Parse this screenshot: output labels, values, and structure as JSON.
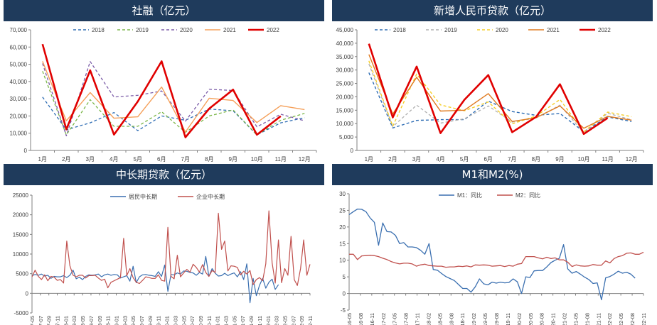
{
  "colors": {
    "header_bg": "#1f3b5c",
    "header_text": "#ffffff",
    "axis": "#808080",
    "tick_text": "#404040"
  },
  "chart_data": [
    {
      "id": "tsf",
      "type": "line",
      "title": "社融（亿元）",
      "categories": [
        "1月",
        "2月",
        "3月",
        "4月",
        "5月",
        "6月",
        "7月",
        "8月",
        "9月",
        "10月",
        "11月",
        "12月"
      ],
      "ylim": [
        0,
        70000
      ],
      "yticks": [
        0,
        10000,
        20000,
        30000,
        40000,
        50000,
        60000,
        70000
      ],
      "ytick_labels": [
        "0",
        "10,000",
        "20,000",
        "30,000",
        "40,000",
        "50,000",
        "60,000",
        "70,000"
      ],
      "legend_position": "top",
      "series": [
        {
          "name": "2018",
          "color": "#2e6db4",
          "dash": "4,3",
          "width": 1.3,
          "values": [
            31000,
            12000,
            16000,
            22000,
            11500,
            20000,
            17500,
            24000,
            23000,
            9000,
            16000,
            19000
          ]
        },
        {
          "name": "2019",
          "color": "#7ab648",
          "dash": "4,3",
          "width": 1.3,
          "values": [
            46000,
            9000,
            29500,
            14000,
            14000,
            22500,
            10500,
            20000,
            23500,
            9000,
            17500,
            21500
          ]
        },
        {
          "name": "2020",
          "color": "#7b5ca8",
          "dash": "4,3",
          "width": 1.3,
          "values": [
            50500,
            8500,
            51600,
            31000,
            32000,
            34500,
            17000,
            35500,
            34800,
            13700,
            21000,
            17200
          ]
        },
        {
          "name": "2021",
          "color": "#f5a05a",
          "dash": "",
          "width": 1.4,
          "values": [
            51700,
            17200,
            33600,
            18700,
            19500,
            36800,
            10700,
            30300,
            29000,
            16200,
            26000,
            23700
          ]
        },
        {
          "name": "2022",
          "color": "#e00000",
          "dash": "",
          "width": 2.6,
          "values": [
            61700,
            12200,
            46500,
            9200,
            28400,
            51700,
            7600,
            24300,
            35300,
            9100,
            19900,
            null
          ]
        }
      ]
    },
    {
      "id": "loans",
      "type": "line",
      "title": "新增人民币贷款（亿元）",
      "categories": [
        "1月",
        "2月",
        "3月",
        "4月",
        "5月",
        "6月",
        "7月",
        "8月",
        "9月",
        "10月",
        "11月",
        "12月"
      ],
      "ylim": [
        0,
        45000
      ],
      "yticks": [
        0,
        5000,
        10000,
        15000,
        20000,
        25000,
        30000,
        35000,
        40000,
        45000
      ],
      "ytick_labels": [
        "0",
        "5,000",
        "10,000",
        "15,000",
        "20,000",
        "25,000",
        "30,000",
        "35,000",
        "40,000",
        "45,000"
      ],
      "legend_position": "top",
      "series": [
        {
          "name": "2018",
          "color": "#2e6db4",
          "dash": "4,3",
          "width": 1.4,
          "values": [
            29000,
            8400,
            11200,
            11500,
            11500,
            18400,
            14500,
            13100,
            13800,
            6970,
            12500,
            10800
          ]
        },
        {
          "name": "2019",
          "color": "#b0b0b0",
          "dash": "4,3",
          "width": 1.3,
          "values": [
            32300,
            8900,
            16900,
            10200,
            11800,
            16600,
            10600,
            12100,
            16900,
            6613,
            13900,
            11400
          ]
        },
        {
          "name": "2020",
          "color": "#f5cf2a",
          "dash": "4,3",
          "width": 1.4,
          "values": [
            33400,
            9057,
            28500,
            17000,
            14800,
            18100,
            9927,
            12800,
            19000,
            6898,
            14300,
            12600
          ]
        },
        {
          "name": "2021",
          "color": "#e07a1f",
          "dash": "",
          "width": 1.4,
          "values": [
            35800,
            13600,
            27300,
            14700,
            15000,
            21200,
            10800,
            12200,
            16600,
            8262,
            12700,
            11300
          ]
        },
        {
          "name": "2022",
          "color": "#e00000",
          "dash": "",
          "width": 2.6,
          "values": [
            39800,
            12300,
            31300,
            6454,
            18900,
            28100,
            6790,
            12500,
            24700,
            6152,
            12100,
            null
          ]
        }
      ]
    },
    {
      "id": "longterm",
      "type": "line",
      "title": "中长期贷款（亿元）",
      "ylim": [
        -5000,
        25000
      ],
      "yticks": [
        -5000,
        0,
        5000,
        10000,
        15000,
        20000,
        25000
      ],
      "ytick_labels": [
        "-5000",
        "0",
        "5000",
        "10000",
        "15000",
        "20000",
        "25000"
      ],
      "legend_position": "top",
      "x_labels": [
        "2017-05",
        "2017-07",
        "2017-09",
        "2017-11",
        "2018-01",
        "2018-03",
        "2018-05",
        "2018-07",
        "2018-09",
        "2018-11",
        "2019-01",
        "2019-03",
        "2019-05",
        "2019-07",
        "2019-09",
        "2019-11",
        "2020-01",
        "2020-03",
        "2020-05",
        "2020-07",
        "2020-09",
        "2020-11",
        "2021-01",
        "2021-03",
        "2021-05",
        "2021-07",
        "2021-09",
        "2021-11",
        "2022-01",
        "2022-03",
        "2022-05",
        "2022-07",
        "2022-09",
        "2022-11"
      ],
      "series": [
        {
          "name": "居民中长期",
          "color": "#3a6fb0",
          "width": 1.2,
          "values": [
            4500,
            4800,
            4600,
            4900,
            4400,
            4600,
            3800,
            4300,
            4200,
            4200,
            4500,
            4000,
            4600,
            5900,
            3700,
            4100,
            3500,
            4300,
            4700,
            4600,
            4700,
            4900,
            4200,
            4700,
            4900,
            4600,
            4800,
            4700,
            3900,
            4200,
            4500,
            3100,
            6900,
            2700,
            4200,
            4700,
            4800,
            4600,
            4500,
            4300,
            5500,
            4300,
            7200,
            500,
            4800,
            4700,
            5200,
            4900,
            5700,
            5600,
            5300,
            5200,
            4600,
            5300,
            4900,
            9400,
            4300,
            6300,
            5100,
            4400,
            4500,
            5100,
            4500,
            4900,
            5200,
            4200,
            5500,
            3500,
            7500,
            -2400,
            3800,
            -600,
            2000,
            3800,
            1300,
            2800,
            3600,
            1000,
            2200
          ]
        },
        {
          "name": "企业中长期",
          "color": "#c0504d",
          "width": 1.2,
          "values": [
            4200,
            5900,
            4300,
            3500,
            4700,
            3200,
            4300,
            4100,
            3300,
            3500,
            2600,
            13300,
            7000,
            4600,
            4200,
            4600,
            4600,
            3900,
            4500,
            4500,
            4600,
            3900,
            3300,
            3600,
            1400,
            2800,
            3200,
            3600,
            4000,
            14000,
            4500,
            6300,
            4000,
            2800,
            2500,
            3300,
            4200,
            4000,
            3800,
            3800,
            4700,
            3300,
            3100,
            16800,
            4300,
            3700,
            9700,
            4200,
            5200,
            6100,
            5400,
            7400,
            6600,
            5400,
            7300,
            5300,
            4300,
            5800,
            5300,
            20400,
            11200,
            13300,
            5700,
            7000,
            6900,
            6600,
            4700,
            5600,
            4900,
            5800,
            2200,
            3500,
            4000,
            3200,
            7500,
            21000,
            7800,
            2600,
            13600,
            2700,
            6300,
            4600,
            14500,
            3500,
            2000,
            6300,
            13600,
            4600,
            7400
          ]
        }
      ]
    },
    {
      "id": "money",
      "type": "line",
      "title": "M1和M2(%)",
      "ylim": [
        -5,
        30
      ],
      "yticks": [
        -5,
        0,
        5,
        10,
        15,
        20,
        25,
        30
      ],
      "ytick_labels": [
        "-5",
        "0",
        "5",
        "10",
        "15",
        "20",
        "25",
        "30"
      ],
      "legend_position": "top",
      "x_labels": [
        "2016-05",
        "2016-08",
        "2016-11",
        "2017-02",
        "2017-05",
        "2017-08",
        "2017-11",
        "2018-02",
        "2018-05",
        "2018-08",
        "2018-11",
        "2019-02",
        "2019-05",
        "2019-08",
        "2019-11",
        "2020-02",
        "2020-05",
        "2020-08",
        "2020-11",
        "2021-02",
        "2021-05",
        "2021-08",
        "2021-11",
        "2022-02",
        "2022-05",
        "2022-08",
        "2022-11"
      ],
      "series": [
        {
          "name": "M1：同比",
          "color": "#3a6fb0",
          "width": 1.3,
          "values": [
            23.7,
            24.6,
            25.4,
            25.3,
            24.6,
            22.7,
            21.4,
            14.5,
            21.2,
            18.6,
            18.5,
            17.5,
            15.0,
            15.3,
            14.0,
            14.0,
            13.8,
            13.0,
            11.8,
            15.0,
            7.2,
            7.0,
            6.0,
            5.1,
            4.5,
            3.9,
            2.7,
            1.5,
            1.5,
            0.4,
            2.0,
            4.4,
            2.9,
            2.6,
            3.4,
            3.1,
            3.4,
            3.2,
            3.3,
            4.4,
            3.5,
            0.0,
            5.0,
            4.8,
            6.8,
            6.9,
            6.9,
            8.0,
            9.3,
            10.0,
            10.6,
            14.7,
            7.4,
            6.1,
            6.6,
            5.8,
            4.9,
            4.2,
            3.0,
            3.2,
            -1.9,
            4.7,
            5.1,
            5.8,
            6.7,
            6.1,
            6.4,
            5.8,
            4.6
          ]
        },
        {
          "name": "M2：同比",
          "color": "#c0504d",
          "width": 1.3,
          "values": [
            11.8,
            11.8,
            10.2,
            11.3,
            11.4,
            11.5,
            11.4,
            11.1,
            10.6,
            10.2,
            9.6,
            9.2,
            8.9,
            9.1,
            9.1,
            8.9,
            8.2,
            8.6,
            8.8,
            8.4,
            8.3,
            8.2,
            8.2,
            7.9,
            8.0,
            8.0,
            8.2,
            8.1,
            8.3,
            8.0,
            8.6,
            8.5,
            8.6,
            8.5,
            8.2,
            8.3,
            8.4,
            8.1,
            8.4,
            8.2,
            8.8,
            9.0,
            11.1,
            11.1,
            11.1,
            10.7,
            10.4,
            10.9,
            10.5,
            10.7,
            10.1,
            10.1,
            9.4,
            8.1,
            8.6,
            8.3,
            8.2,
            8.3,
            8.7,
            8.5,
            8.5,
            9.8,
            9.2,
            10.5,
            11.1,
            11.4,
            12.1,
            12.2,
            11.8,
            11.8,
            12.4
          ]
        }
      ]
    }
  ]
}
